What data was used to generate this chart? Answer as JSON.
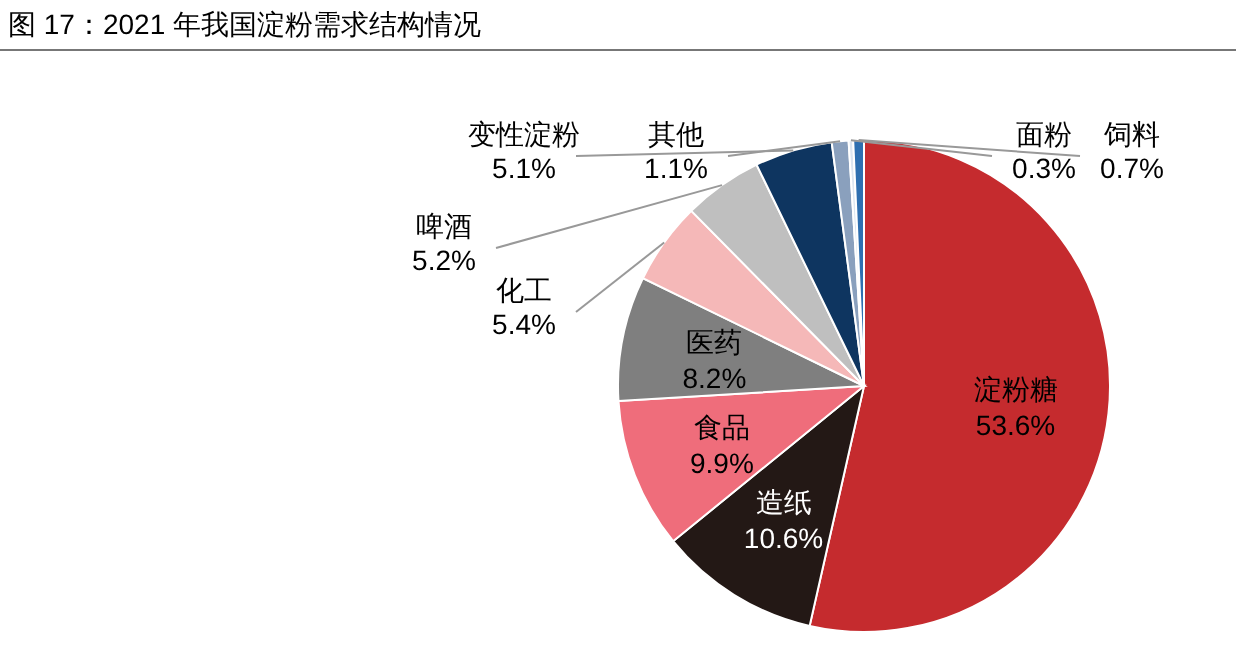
{
  "chart_data": {
    "type": "pie",
    "title": "图 17：2021 年我国淀粉需求结构情况",
    "categories": [
      "淀粉糖",
      "造纸",
      "食品",
      "医药",
      "化工",
      "啤酒",
      "变性淀粉",
      "其他",
      "面粉",
      "饲料"
    ],
    "values": [
      53.6,
      10.6,
      9.9,
      8.2,
      5.4,
      5.2,
      5.1,
      1.1,
      0.3,
      0.7
    ],
    "value_labels": [
      "53.6%",
      "10.6%",
      "9.9%",
      "8.2%",
      "5.4%",
      "5.2%",
      "5.1%",
      "1.1%",
      "0.3%",
      "0.7%"
    ],
    "colors": [
      "#c52b2e",
      "#231815",
      "#ef6d7b",
      "#7f7f7f",
      "#f5b8b8",
      "#bfbfbf",
      "#0e3560",
      "#8aa0bd",
      "#dde6f0",
      "#2e6fb0"
    ]
  }
}
